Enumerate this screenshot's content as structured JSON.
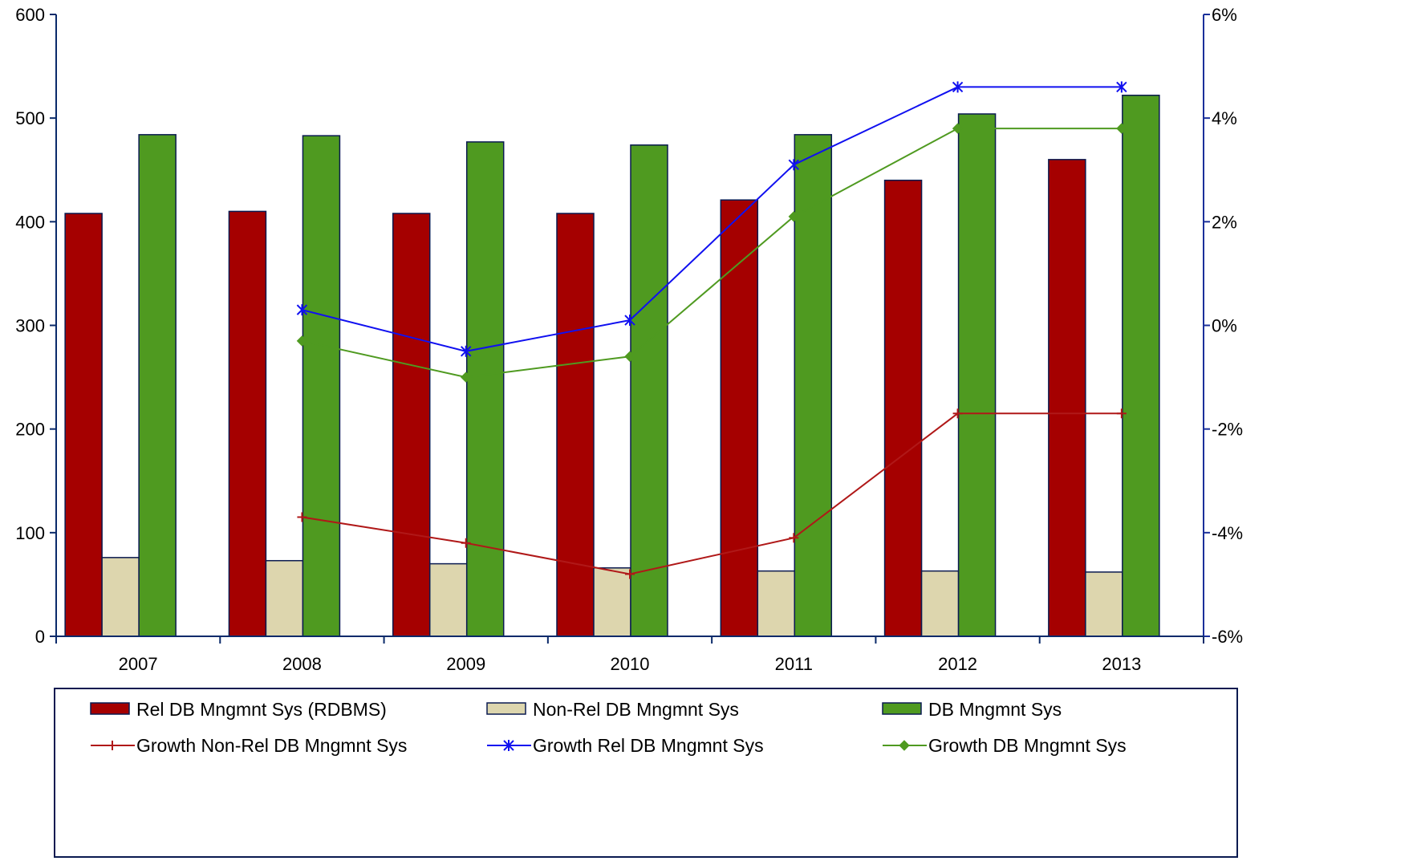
{
  "chart_data": {
    "type": "bar",
    "categories": [
      "2007",
      "2008",
      "2009",
      "2010",
      "2011",
      "2012",
      "2013"
    ],
    "y_left": {
      "ticks": [
        "0",
        "100",
        "200",
        "300",
        "400",
        "500",
        "600"
      ],
      "ylim": [
        0,
        600
      ]
    },
    "y_right": {
      "ticks": [
        "-6%",
        "-4%",
        "-2%",
        "0%",
        "2%",
        "4%",
        "6%"
      ],
      "ylim": [
        -6,
        6
      ]
    },
    "grid": false,
    "legend_position": "bottom",
    "bar_series": [
      {
        "name": "Rel DB Mngmnt Sys (RDBMS)",
        "color": "#A50000",
        "values": [
          408,
          410,
          408,
          408,
          421,
          440,
          460
        ]
      },
      {
        "name": "Non-Rel DB Mngmnt Sys",
        "color": "#DDD6AE",
        "values": [
          76,
          73,
          70,
          66,
          63,
          63,
          62
        ]
      },
      {
        "name": "DB Mngmnt Sys",
        "color": "#4F9A20",
        "values": [
          484,
          483,
          477,
          474,
          484,
          504,
          522
        ]
      }
    ],
    "line_series": [
      {
        "name": "Growth Non-Rel DB Mngmnt Sys",
        "color": "#B01818",
        "marker": "plus",
        "values": [
          null,
          -3.7,
          -4.2,
          -4.8,
          -4.1,
          -1.7,
          -1.7
        ]
      },
      {
        "name": "Growth Rel DB Mngmnt Sys",
        "color": "#1010F0",
        "marker": "asterisk",
        "values": [
          null,
          0.3,
          -0.5,
          0.1,
          3.1,
          4.6,
          4.6
        ]
      },
      {
        "name": "Growth DB Mngmnt Sys",
        "color": "#4F9A20",
        "marker": "diamond",
        "values": [
          null,
          -0.3,
          -1.0,
          -0.6,
          2.1,
          3.8,
          3.8
        ]
      }
    ]
  }
}
